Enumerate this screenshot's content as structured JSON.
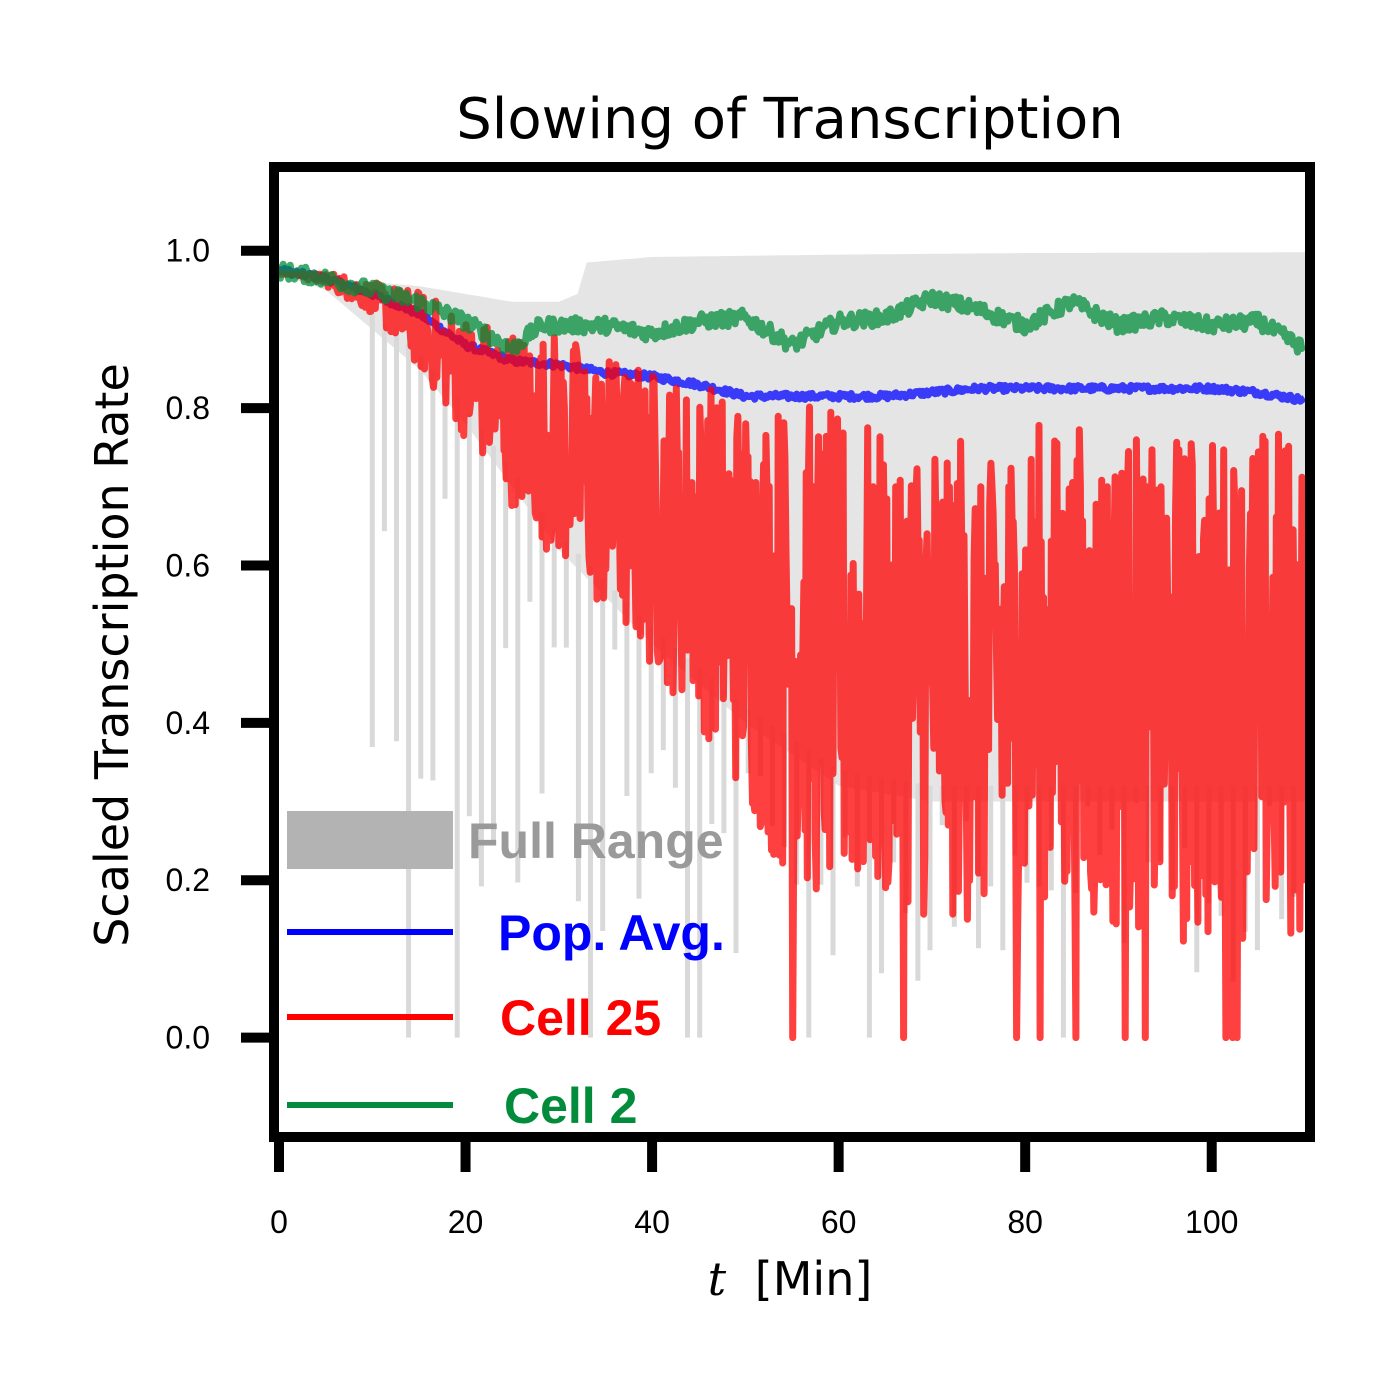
{
  "chart_data": {
    "type": "line",
    "title": "Slowing of Transcription",
    "xlabel_var": "t",
    "xlabel_unit": "[Min]",
    "ylabel": "Scaled Transcription Rate",
    "xlim": [
      0,
      110
    ],
    "ylim": [
      -0.12,
      1.1
    ],
    "x_ticks": [
      0,
      20,
      40,
      60,
      80,
      100
    ],
    "y_ticks": [
      0.0,
      0.2,
      0.4,
      0.6,
      0.8,
      1.0
    ],
    "x_tick_labels": [
      "0",
      "20",
      "40",
      "60",
      "80",
      "100"
    ],
    "y_tick_labels": [
      "0.0",
      "0.2",
      "0.4",
      "0.6",
      "0.8",
      "1.0"
    ],
    "grid": false,
    "legend_position": "bottom-left",
    "full_range": {
      "name": "Full Range",
      "color": "#b3b3b3",
      "fill_color": "#e5e5e5",
      "upper": [
        [
          0,
          0.975
        ],
        [
          5,
          0.965
        ],
        [
          10,
          0.96
        ],
        [
          15,
          0.955
        ],
        [
          20,
          0.945
        ],
        [
          25,
          0.935
        ],
        [
          30,
          0.935
        ],
        [
          32,
          0.945
        ],
        [
          33,
          0.985
        ],
        [
          40,
          0.992
        ],
        [
          60,
          0.995
        ],
        [
          80,
          0.997
        ],
        [
          110,
          0.998
        ]
      ],
      "lower": [
        [
          0,
          0.97
        ],
        [
          5,
          0.95
        ],
        [
          10,
          0.9
        ],
        [
          15,
          0.85
        ],
        [
          20,
          0.78
        ],
        [
          25,
          0.7
        ],
        [
          30,
          0.62
        ],
        [
          35,
          0.56
        ],
        [
          40,
          0.5
        ],
        [
          45,
          0.45
        ],
        [
          50,
          0.4
        ],
        [
          55,
          0.36
        ],
        [
          60,
          0.32
        ],
        [
          70,
          0.3
        ],
        [
          80,
          0.3
        ],
        [
          90,
          0.3
        ],
        [
          100,
          0.3
        ],
        [
          110,
          0.3
        ]
      ]
    },
    "series": [
      {
        "name": "Pop. Avg.",
        "color": "#0000ff",
        "points": [
          [
            0,
            0.975
          ],
          [
            5,
            0.965
          ],
          [
            10,
            0.945
          ],
          [
            15,
            0.92
          ],
          [
            20,
            0.88
          ],
          [
            25,
            0.86
          ],
          [
            30,
            0.855
          ],
          [
            35,
            0.845
          ],
          [
            40,
            0.84
          ],
          [
            45,
            0.83
          ],
          [
            50,
            0.815
          ],
          [
            55,
            0.815
          ],
          [
            60,
            0.815
          ],
          [
            65,
            0.815
          ],
          [
            70,
            0.82
          ],
          [
            75,
            0.825
          ],
          [
            80,
            0.825
          ],
          [
            85,
            0.825
          ],
          [
            90,
            0.825
          ],
          [
            95,
            0.825
          ],
          [
            100,
            0.825
          ],
          [
            105,
            0.82
          ],
          [
            110,
            0.81
          ]
        ]
      },
      {
        "name": "Cell 25",
        "color": "#ff0000",
        "points": [
          [
            0,
            0.975
          ],
          [
            5,
            0.965
          ],
          [
            10,
            0.94
          ],
          [
            15,
            0.9
          ],
          [
            20,
            0.84
          ],
          [
            25,
            0.79
          ],
          [
            30,
            0.75
          ],
          [
            35,
            0.7
          ],
          [
            40,
            0.66
          ],
          [
            45,
            0.62
          ],
          [
            50,
            0.56
          ],
          [
            55,
            0.5
          ],
          [
            60,
            0.48
          ],
          [
            70,
            0.47
          ],
          [
            80,
            0.46
          ],
          [
            90,
            0.45
          ],
          [
            100,
            0.44
          ],
          [
            110,
            0.45
          ]
        ],
        "noise": [
          [
            0,
            0.0
          ],
          [
            10,
            0.02
          ],
          [
            20,
            0.08
          ],
          [
            30,
            0.15
          ],
          [
            45,
            0.22
          ],
          [
            55,
            0.32
          ],
          [
            110,
            0.34
          ]
        ]
      },
      {
        "name": "Cell 2",
        "color": "#008c3a",
        "points": [
          [
            0,
            0.975
          ],
          [
            5,
            0.965
          ],
          [
            10,
            0.95
          ],
          [
            15,
            0.935
          ],
          [
            20,
            0.91
          ],
          [
            25,
            0.875
          ],
          [
            28,
            0.905
          ],
          [
            35,
            0.905
          ],
          [
            40,
            0.895
          ],
          [
            45,
            0.91
          ],
          [
            50,
            0.915
          ],
          [
            55,
            0.88
          ],
          [
            60,
            0.91
          ],
          [
            65,
            0.915
          ],
          [
            70,
            0.94
          ],
          [
            75,
            0.925
          ],
          [
            80,
            0.905
          ],
          [
            85,
            0.935
          ],
          [
            90,
            0.905
          ],
          [
            95,
            0.915
          ],
          [
            100,
            0.905
          ],
          [
            105,
            0.91
          ],
          [
            110,
            0.875
          ]
        ]
      }
    ],
    "legend_items": [
      {
        "label": "Full Range",
        "color": "#9a9a9a",
        "swatch_color": "#b3b3b3",
        "kind": "patch"
      },
      {
        "label": "Pop. Avg.",
        "color": "#0000ff",
        "swatch_color": "#0000ff",
        "kind": "line"
      },
      {
        "label": "Cell 25",
        "color": "#ff0000",
        "swatch_color": "#ff0000",
        "kind": "line"
      },
      {
        "label": "Cell 2",
        "color": "#008c3a",
        "swatch_color": "#008c3a",
        "kind": "line"
      }
    ]
  }
}
